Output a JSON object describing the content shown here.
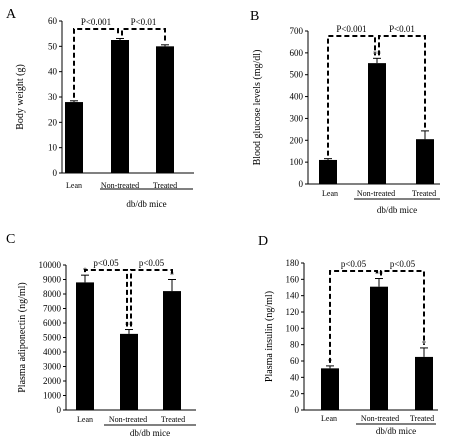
{
  "group_label": "db/db mice",
  "chart_data": [
    {
      "panel": "A",
      "type": "bar",
      "ylabel": "Body weight (g)",
      "categories": [
        "Lean",
        "Non-treated",
        "Treated"
      ],
      "values": [
        28,
        52.5,
        50
      ],
      "errors": [
        0.5,
        0.6,
        0.6
      ],
      "ylim": [
        0,
        60
      ],
      "ytick_step": 10,
      "group_label": "db/db mice",
      "comparisons": [
        {
          "from": 0,
          "to": 1,
          "label": "P<0.001"
        },
        {
          "from": 1,
          "to": 2,
          "label": "P<0.01"
        }
      ],
      "bar_marks": [
        "",
        "",
        ""
      ]
    },
    {
      "panel": "B",
      "type": "bar",
      "ylabel": "Blood glucose levels (mg/dl)",
      "categories": [
        "Lean",
        "Non-treated",
        "Treated"
      ],
      "values": [
        110,
        553,
        205
      ],
      "errors": [
        6,
        22,
        38
      ],
      "ylim": [
        0,
        700
      ],
      "ytick_step": 100,
      "group_label": "db/db mice",
      "comparisons": [
        {
          "from": 0,
          "to": 1,
          "label": "P<0.001"
        },
        {
          "from": 1,
          "to": 2,
          "label": "P<0.01"
        }
      ],
      "bar_marks": [
        "",
        "**",
        ""
      ]
    },
    {
      "panel": "C",
      "type": "bar",
      "ylabel": "Plasma adiponectin (ng/ml)",
      "categories": [
        "Lean",
        "Non-treated",
        "Treated"
      ],
      "values": [
        8800,
        5250,
        8200
      ],
      "errors": [
        500,
        300,
        800
      ],
      "ylim": [
        0,
        10000
      ],
      "ytick_step": 1000,
      "group_label": "db/db mice",
      "comparisons": [
        {
          "from": 0,
          "to": 1,
          "label": "p<0.05"
        },
        {
          "from": 1,
          "to": 2,
          "label": "p<0.05"
        }
      ],
      "bar_marks": [
        "*",
        "**",
        "*"
      ]
    },
    {
      "panel": "D",
      "type": "bar",
      "ylabel": "Plasma insulin (ng/ml)",
      "categories": [
        "Lean",
        "Non-treated",
        "Treated"
      ],
      "values": [
        51,
        151,
        65
      ],
      "errors": [
        3,
        10,
        11
      ],
      "ylim": [
        0,
        180
      ],
      "ytick_step": 20,
      "group_label": "db/db mice",
      "comparisons": [
        {
          "from": 0,
          "to": 1,
          "label": "p<0.05"
        },
        {
          "from": 1,
          "to": 2,
          "label": "p<0.05"
        }
      ],
      "bar_marks": [
        "*",
        "**",
        "*"
      ]
    }
  ]
}
